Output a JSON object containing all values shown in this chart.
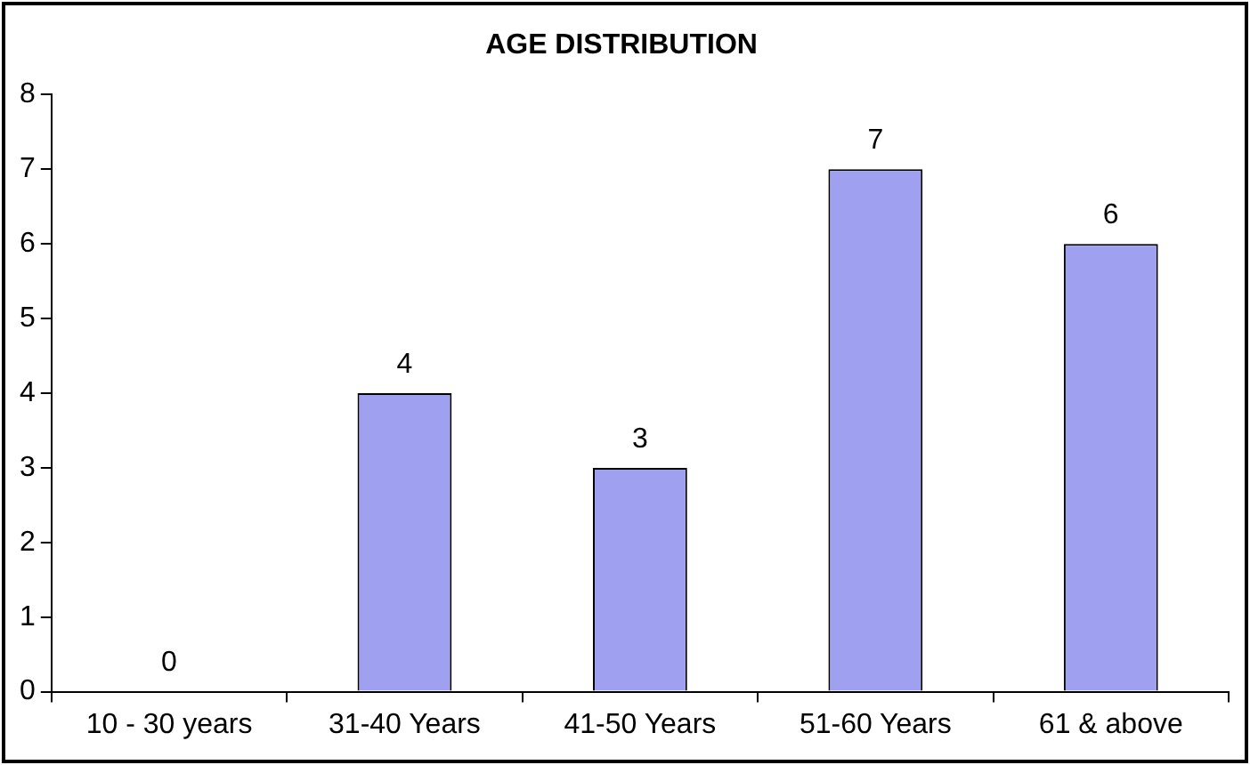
{
  "chart_data": {
    "type": "bar",
    "title": "AGE DISTRIBUTION",
    "categories": [
      "10 - 30 years",
      "31-40 Years",
      "41-50 Years",
      "51-60 Years",
      "61 & above"
    ],
    "values": [
      0,
      4,
      3,
      7,
      6
    ],
    "color": "#a0a0f0",
    "ylim": [
      0,
      8
    ],
    "yticks": [
      0,
      1,
      2,
      3,
      4,
      5,
      6,
      7,
      8
    ],
    "data_labels": true,
    "grid": false,
    "legend": false
  }
}
